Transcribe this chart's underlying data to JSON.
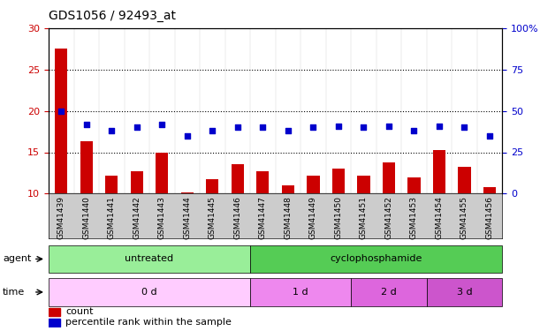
{
  "title": "GDS1056 / 92493_at",
  "samples": [
    "GSM41439",
    "GSM41440",
    "GSM41441",
    "GSM41442",
    "GSM41443",
    "GSM41444",
    "GSM41445",
    "GSM41446",
    "GSM41447",
    "GSM41448",
    "GSM41449",
    "GSM41450",
    "GSM41451",
    "GSM41452",
    "GSM41453",
    "GSM41454",
    "GSM41455",
    "GSM41456"
  ],
  "count_values": [
    27.5,
    16.3,
    12.2,
    12.7,
    15.0,
    10.1,
    11.8,
    13.6,
    12.7,
    11.0,
    12.2,
    13.0,
    12.2,
    13.8,
    12.0,
    15.3,
    13.2,
    10.8
  ],
  "percentile_values": [
    50,
    42,
    38,
    40,
    42,
    35,
    38,
    40,
    40,
    38,
    40,
    41,
    40,
    41,
    38,
    41,
    40,
    35
  ],
  "bar_color": "#cc0000",
  "dot_color": "#0000cc",
  "left_ylim": [
    10,
    30
  ],
  "left_yticks": [
    10,
    15,
    20,
    25,
    30
  ],
  "right_ylim": [
    0,
    100
  ],
  "right_yticks": [
    0,
    25,
    50,
    75,
    100
  ],
  "right_yticklabels": [
    "0",
    "25",
    "50",
    "75",
    "100%"
  ],
  "hlines": [
    15,
    20,
    25
  ],
  "agent_labels": [
    {
      "text": "untreated",
      "start": 0,
      "end": 8,
      "color": "#99ee99"
    },
    {
      "text": "cyclophosphamide",
      "start": 8,
      "end": 18,
      "color": "#55cc55"
    }
  ],
  "time_labels": [
    {
      "text": "0 d",
      "start": 0,
      "end": 8,
      "color": "#ffccff"
    },
    {
      "text": "1 d",
      "start": 8,
      "end": 12,
      "color": "#ee88ee"
    },
    {
      "text": "2 d",
      "start": 12,
      "end": 15,
      "color": "#dd66dd"
    },
    {
      "text": "3 d",
      "start": 15,
      "end": 18,
      "color": "#cc55cc"
    }
  ],
  "legend_count_color": "#cc0000",
  "legend_dot_color": "#0000cc",
  "tick_label_color_left": "#cc0000",
  "tick_label_color_right": "#0000cc",
  "xticklabel_bg": "#cccccc"
}
